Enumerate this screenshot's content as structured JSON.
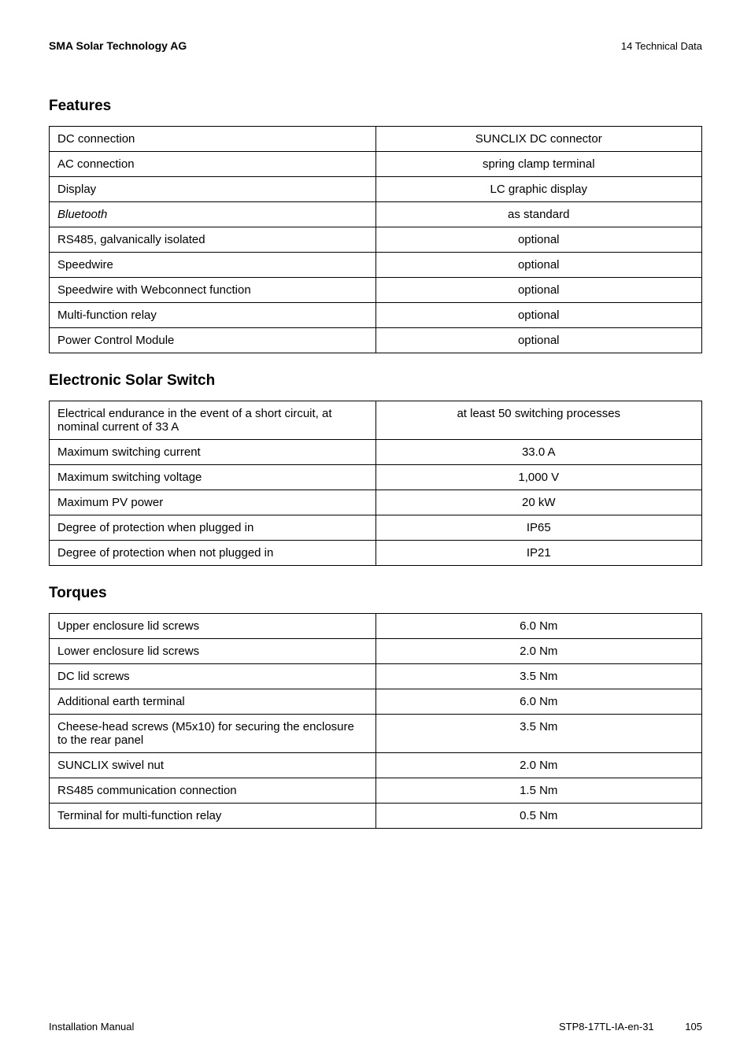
{
  "header": {
    "company": "SMA Solar Technology AG",
    "section": "14  Technical Data"
  },
  "sections": {
    "features": {
      "title": "Features",
      "rows": [
        {
          "label": "DC connection",
          "value": "SUNCLIX DC connector",
          "italic": false
        },
        {
          "label": "AC connection",
          "value": "spring clamp terminal",
          "italic": false
        },
        {
          "label": "Display",
          "value": "LC graphic display",
          "italic": false
        },
        {
          "label": "Bluetooth",
          "value": "as standard",
          "italic": true
        },
        {
          "label": "RS485, galvanically isolated",
          "value": "optional",
          "italic": false
        },
        {
          "label": "Speedwire",
          "value": "optional",
          "italic": false
        },
        {
          "label": "Speedwire with Webconnect function",
          "value": "optional",
          "italic": false
        },
        {
          "label": "Multi-function relay",
          "value": "optional",
          "italic": false
        },
        {
          "label": "Power Control Module",
          "value": "optional",
          "italic": false
        }
      ]
    },
    "electronic_solar_switch": {
      "title": "Electronic Solar Switch",
      "rows": [
        {
          "label": "Electrical endurance in the event of a short circuit, at nominal current of 33 A",
          "value": "at least 50 switching processes"
        },
        {
          "label": "Maximum switching current",
          "value": "33.0 A"
        },
        {
          "label": "Maximum switching voltage",
          "value": "1,000 V"
        },
        {
          "label": "Maximum PV power",
          "value": "20 kW"
        },
        {
          "label": "Degree of protection when plugged in",
          "value": "IP65"
        },
        {
          "label": "Degree of protection when not plugged in",
          "value": "IP21"
        }
      ]
    },
    "torques": {
      "title": "Torques",
      "rows": [
        {
          "label": "Upper enclosure lid screws",
          "value": "6.0 Nm"
        },
        {
          "label": "Lower enclosure lid screws",
          "value": "2.0 Nm"
        },
        {
          "label": "DC lid screws",
          "value": "3.5 Nm"
        },
        {
          "label": "Additional earth terminal",
          "value": "6.0 Nm"
        },
        {
          "label": "Cheese-head screws (M5x10) for securing the enclosure to the rear panel",
          "value": "3.5 Nm"
        },
        {
          "label": "SUNCLIX swivel nut",
          "value": "2.0 Nm"
        },
        {
          "label": "RS485 communication connection",
          "value": "1.5 Nm"
        },
        {
          "label": "Terminal for multi-function relay",
          "value": "0.5 Nm"
        }
      ]
    }
  },
  "footer": {
    "left": "Installation Manual",
    "doc_id": "STP8-17TL-IA-en-31",
    "page": "105"
  },
  "styles": {
    "font_family": "Arial, Helvetica, sans-serif",
    "body_font_size": 15,
    "title_font_size": 19,
    "header_font_size": 14,
    "footer_font_size": 13,
    "border_color": "#000000",
    "text_color": "#000000",
    "background_color": "#ffffff"
  }
}
